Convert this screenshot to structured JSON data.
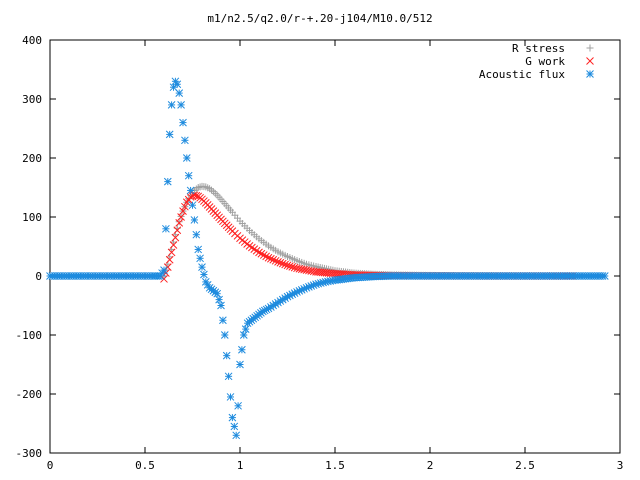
{
  "chart_data": {
    "type": "scatter",
    "title": "m1/n2.5/q2.0/r-+.20-j104/M10.0/512",
    "xlabel": "",
    "ylabel": "",
    "xlim": [
      0,
      3
    ],
    "ylim": [
      -300,
      400
    ],
    "xticks": [
      0,
      0.5,
      1,
      1.5,
      2,
      2.5,
      3
    ],
    "xtick_labels": [
      "0",
      "0.5",
      "1",
      "1.5",
      "2",
      "2.5",
      "3"
    ],
    "yticks": [
      -300,
      -200,
      -100,
      0,
      100,
      200,
      300,
      400
    ],
    "ytick_labels": [
      "-300",
      "-200",
      "-100",
      "0",
      "100",
      "200",
      "300",
      "400"
    ],
    "grid": false,
    "legend_position": "top-right",
    "series": [
      {
        "name": "R stress",
        "marker": "plus",
        "color": "#a0a0a0",
        "x": [
          0.6,
          0.62,
          0.64,
          0.66,
          0.68,
          0.7,
          0.72,
          0.74,
          0.76,
          0.78,
          0.8,
          0.82,
          0.84,
          0.86,
          0.88,
          0.9,
          0.93,
          0.96,
          1.0,
          1.05,
          1.1,
          1.15,
          1.2,
          1.25,
          1.3,
          1.35,
          1.4,
          1.5,
          1.6,
          1.7,
          1.8,
          2.0,
          2.2,
          2.4,
          2.6,
          2.75
        ],
        "y": [
          0,
          20,
          45,
          70,
          92,
          110,
          125,
          137,
          145,
          150,
          152,
          151,
          148,
          143,
          137,
          130,
          119,
          108,
          93,
          77,
          63,
          51,
          41,
          33,
          26,
          20,
          16,
          9,
          5,
          3,
          2,
          1,
          0.5,
          0.2,
          0.1,
          0
        ]
      },
      {
        "name": "G work",
        "marker": "cross",
        "color": "#ff2020",
        "x": [
          0.6,
          0.62,
          0.64,
          0.66,
          0.68,
          0.7,
          0.72,
          0.74,
          0.76,
          0.78,
          0.8,
          0.82,
          0.84,
          0.86,
          0.88,
          0.9,
          0.93,
          0.96,
          1.0,
          1.05,
          1.1,
          1.15,
          1.2,
          1.25,
          1.3,
          1.35,
          1.4,
          1.5,
          1.6,
          1.7,
          1.8,
          2.0,
          2.2,
          2.4,
          2.6,
          2.75
        ],
        "y": [
          -5,
          15,
          40,
          65,
          90,
          110,
          125,
          134,
          137,
          135,
          130,
          124,
          117,
          110,
          103,
          96,
          86,
          76,
          64,
          51,
          40,
          31,
          24,
          18,
          13,
          10,
          7,
          4,
          2,
          1,
          0.5,
          0.2,
          0.1,
          0,
          0,
          0
        ]
      },
      {
        "name": "Acoustic flux",
        "marker": "star",
        "color": "#1e8bde",
        "x": [
          0,
          0.05,
          0.1,
          0.15,
          0.2,
          0.25,
          0.3,
          0.35,
          0.4,
          0.45,
          0.5,
          0.55,
          0.58,
          0.6,
          0.61,
          0.62,
          0.63,
          0.64,
          0.65,
          0.66,
          0.67,
          0.68,
          0.69,
          0.7,
          0.71,
          0.72,
          0.73,
          0.74,
          0.75,
          0.76,
          0.77,
          0.78,
          0.8,
          0.82,
          0.84,
          0.86,
          0.88,
          0.9,
          0.92,
          0.94,
          0.96,
          0.98,
          0.99,
          1.0,
          1.02,
          1.04,
          1.06,
          1.08,
          1.1,
          1.12,
          1.15,
          1.2,
          1.25,
          1.3,
          1.35,
          1.4,
          1.45,
          1.5,
          1.6,
          1.7,
          1.8,
          2.0,
          2.2,
          2.4,
          2.6,
          2.8,
          2.92
        ],
        "y": [
          0,
          0,
          0,
          0,
          0,
          0,
          0,
          0,
          0,
          0,
          0,
          0,
          0,
          10,
          80,
          160,
          240,
          290,
          320,
          330,
          325,
          310,
          290,
          260,
          230,
          200,
          170,
          145,
          120,
          95,
          70,
          45,
          15,
          -10,
          -20,
          -25,
          -30,
          -50,
          -100,
          -170,
          -240,
          -270,
          -220,
          -150,
          -100,
          -80,
          -75,
          -70,
          -65,
          -60,
          -55,
          -45,
          -35,
          -27,
          -20,
          -14,
          -10,
          -7,
          -3,
          -1,
          0,
          0,
          0,
          0,
          0,
          0,
          0
        ]
      }
    ]
  }
}
